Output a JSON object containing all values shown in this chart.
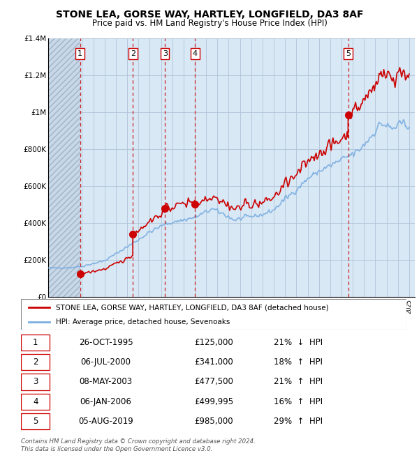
{
  "title": "STONE LEA, GORSE WAY, HARTLEY, LONGFIELD, DA3 8AF",
  "subtitle": "Price paid vs. HM Land Registry's House Price Index (HPI)",
  "ylim": [
    0,
    1400000
  ],
  "yticks": [
    0,
    200000,
    400000,
    600000,
    800000,
    1000000,
    1200000,
    1400000
  ],
  "ytick_labels": [
    "£0",
    "£200K",
    "£400K",
    "£600K",
    "£800K",
    "£1M",
    "£1.2M",
    "£1.4M"
  ],
  "xlim_start": 1993.0,
  "xlim_end": 2025.5,
  "sales": [
    {
      "num": 1,
      "date": "26-OCT-1995",
      "year": 1995.82,
      "price": 125000,
      "pct": "21%",
      "dir": "↓"
    },
    {
      "num": 2,
      "date": "06-JUL-2000",
      "year": 2000.51,
      "price": 341000,
      "pct": "18%",
      "dir": "↑"
    },
    {
      "num": 3,
      "date": "08-MAY-2003",
      "year": 2003.35,
      "price": 477500,
      "pct": "21%",
      "dir": "↑"
    },
    {
      "num": 4,
      "date": "06-JAN-2006",
      "year": 2006.02,
      "price": 499995,
      "pct": "16%",
      "dir": "↑"
    },
    {
      "num": 5,
      "date": "05-AUG-2019",
      "year": 2019.59,
      "price": 985000,
      "pct": "29%",
      "dir": "↑"
    }
  ],
  "legend_label_red": "STONE LEA, GORSE WAY, HARTLEY, LONGFIELD, DA3 8AF (detached house)",
  "legend_label_blue": "HPI: Average price, detached house, Sevenoaks",
  "footer": "Contains HM Land Registry data © Crown copyright and database right 2024.\nThis data is licensed under the Open Government Licence v3.0.",
  "hpi_color": "#7aade0",
  "sale_color": "#cc0000",
  "bg_color": "#d8e8f5",
  "grid_color": "#b0c4d8"
}
